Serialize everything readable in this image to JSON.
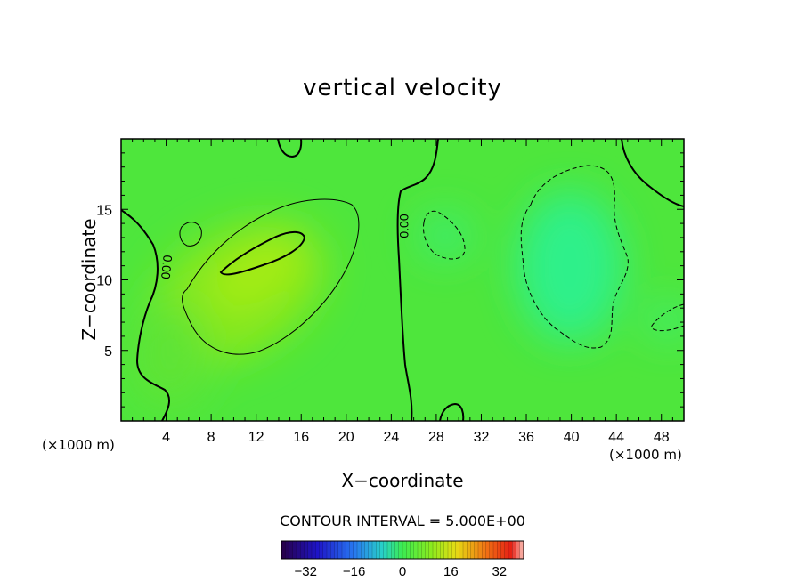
{
  "chart_data": {
    "type": "heatmap",
    "title": "vertical velocity",
    "xlabel": "X−coordinate",
    "ylabel": "Z−coordinate",
    "x_unit": "(×1000 m)",
    "y_unit": "(×1000 m)",
    "xlim": [
      0,
      50
    ],
    "ylim": [
      0,
      20
    ],
    "x_ticks": [
      4,
      8,
      12,
      16,
      20,
      24,
      28,
      32,
      36,
      40,
      44,
      48
    ],
    "y_ticks": [
      5,
      10,
      15
    ],
    "contour_interval_label": "CONTOUR INTERVAL = 5.000E+00",
    "contour_interval": 5.0,
    "contour_labels": [
      {
        "text": "0.00",
        "x": 24.3,
        "y": 13.6
      },
      {
        "text": "0.00",
        "x": 3.8,
        "y": 10.8
      }
    ],
    "field_features": [
      {
        "kind": "updraft",
        "x": 13,
        "y": 10.5,
        "peak": 12
      },
      {
        "kind": "updraft",
        "x": 18,
        "y": 14,
        "peak": 7
      },
      {
        "kind": "downdraft",
        "x": 40,
        "y": 10,
        "peak": -6
      },
      {
        "kind": "downdraft",
        "x": 29,
        "y": 13,
        "peak": -3
      }
    ],
    "colorbar": {
      "min": -40,
      "max": 40,
      "ticks": [
        -32,
        -16,
        0,
        16,
        32
      ],
      "tick_labels": [
        "−32",
        "−16",
        "0",
        "16",
        "32"
      ]
    }
  }
}
